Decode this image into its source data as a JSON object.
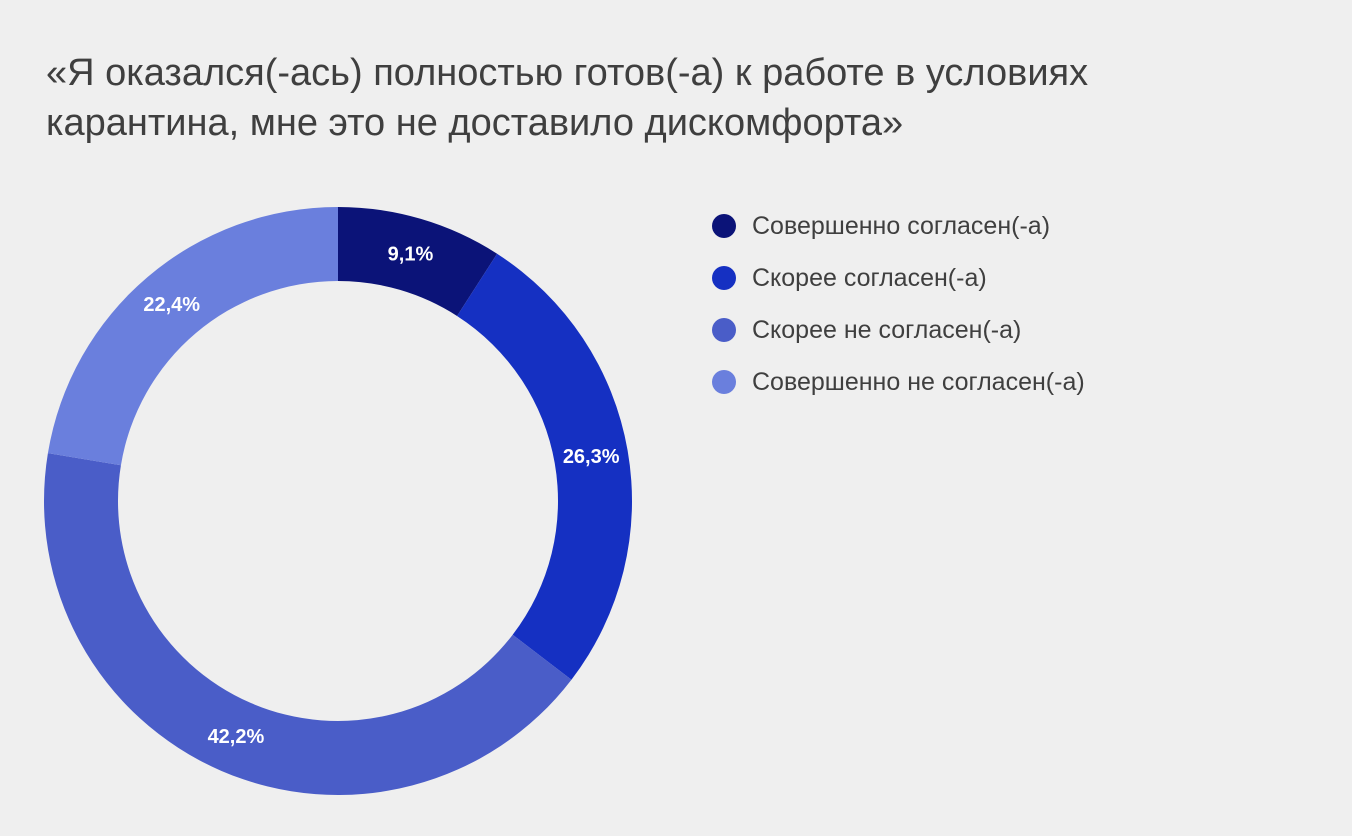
{
  "chart_data": {
    "type": "pie",
    "title_lines": [
      "«Я оказался(-ась) полностью готов(-а) к работе в условиях",
      "карантина, мне это не доставило дискомфорта»"
    ],
    "categories": [
      "Совершенно согласен(-а)",
      "Скорее согласен(-а)",
      "Скорее не согласен(-а)",
      "Совершенно не согласен(-а)"
    ],
    "values": [
      9.1,
      26.3,
      42.2,
      22.4
    ],
    "data_labels": [
      "9,1%",
      "26,3%",
      "42,2%",
      "22,4%"
    ],
    "colors": [
      "#0b1378",
      "#1530c2",
      "#4a5dc8",
      "#6a7fdd"
    ],
    "label_color": "#ffffff",
    "background": "#efefef",
    "donut": true,
    "legend_position": "right"
  }
}
